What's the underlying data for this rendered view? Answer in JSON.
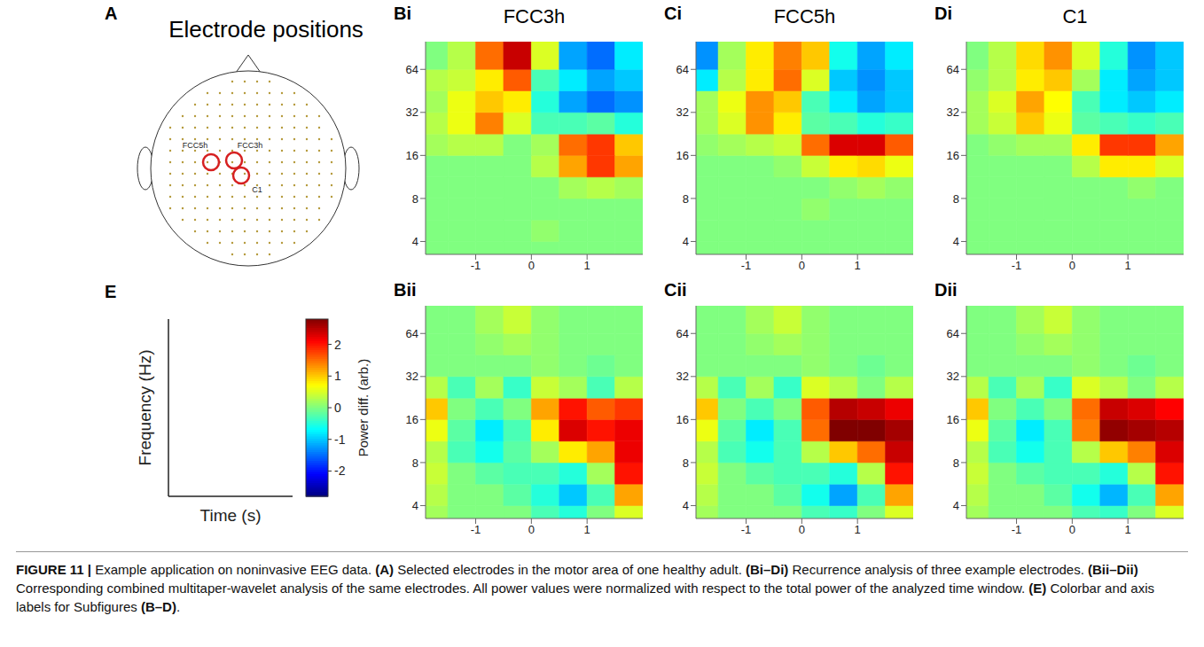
{
  "panel_a": {
    "letter": "A",
    "title": "Electrode positions",
    "selected_electrodes": [
      "FCC5h",
      "FCC3h",
      "C1"
    ]
  },
  "panel_e": {
    "letter": "E",
    "xlabel": "Time (s)",
    "ylabel": "Frequency (Hz)",
    "colorbar": {
      "range": [
        -2.8,
        2.8
      ],
      "ticks": [
        -2,
        -1,
        0,
        1,
        2
      ],
      "label": "Power diff. (arb.)"
    }
  },
  "chart_data": [
    {
      "type": "heatmap",
      "panel": "Bi",
      "title": "FCC3h",
      "log": "y",
      "xlim": [
        -1.9,
        2
      ],
      "ylim": [
        3.25,
        100
      ],
      "xticks": [
        -1,
        0,
        1
      ],
      "yticks": [
        4,
        8,
        16,
        32,
        64
      ],
      "x_edges": [
        -1.9,
        -1.5,
        -1,
        -0.5,
        0,
        0.5,
        1,
        1.5,
        2
      ],
      "y_edges": [
        3.25,
        4,
        5.66,
        8,
        11.3,
        16,
        22.6,
        32,
        45.3,
        64,
        100
      ],
      "cells": [
        [
          0,
          0,
          0,
          0,
          0,
          0,
          0,
          0
        ],
        [
          0,
          0,
          0,
          0,
          0.1,
          0,
          0,
          0
        ],
        [
          0,
          0,
          0,
          0,
          0,
          0,
          0,
          0
        ],
        [
          0,
          0,
          0,
          0,
          0,
          0.2,
          0.3,
          0.2
        ],
        [
          0,
          0,
          0,
          0,
          0.3,
          1.2,
          1.8,
          1.2
        ],
        [
          0.2,
          0.3,
          0.3,
          0,
          0.2,
          1.5,
          1.8,
          1
        ],
        [
          0.3,
          0.6,
          1.4,
          0.5,
          -0.3,
          -0.3,
          -0.2,
          -0.5
        ],
        [
          0.2,
          0.6,
          1,
          0.8,
          -0.5,
          -1.2,
          -1.5,
          -1.3
        ],
        [
          0.3,
          0.4,
          0.8,
          1.6,
          -0.3,
          -0.8,
          -1.2,
          -1
        ],
        [
          0,
          0.3,
          1.5,
          2.4,
          0.5,
          -1.2,
          -1.5,
          -0.8
        ]
      ]
    },
    {
      "type": "heatmap",
      "panel": "Ci",
      "title": "FCC5h",
      "log": "y",
      "xlim": [
        -1.9,
        2
      ],
      "ylim": [
        3.25,
        100
      ],
      "xticks": [
        -1,
        0,
        1
      ],
      "yticks": [
        4,
        8,
        16,
        32,
        64
      ],
      "x_edges": [
        -1.9,
        -1.5,
        -1,
        -0.5,
        0,
        0.5,
        1,
        1.5,
        2
      ],
      "y_edges": [
        3.25,
        4,
        5.66,
        8,
        11.3,
        16,
        22.6,
        32,
        45.3,
        64,
        100
      ],
      "cells": [
        [
          0,
          0,
          0,
          0,
          0,
          0,
          0,
          0
        ],
        [
          0,
          0,
          0,
          0,
          0,
          0,
          0,
          0
        ],
        [
          0,
          0,
          0,
          0,
          0.1,
          0,
          0,
          0
        ],
        [
          0,
          0,
          0,
          0,
          0,
          0.1,
          0.2,
          0.1
        ],
        [
          0,
          0,
          0,
          0.1,
          0.4,
          0.8,
          0.9,
          0.6
        ],
        [
          0.1,
          0.2,
          0.3,
          0.4,
          1.5,
          2.3,
          2.3,
          1.6
        ],
        [
          0.2,
          0.5,
          1.3,
          0.8,
          -0.2,
          -0.3,
          -0.5,
          -0.4
        ],
        [
          0.2,
          0.6,
          1.3,
          1,
          -0.3,
          -0.8,
          -1.2,
          -1
        ],
        [
          -0.8,
          0.3,
          0.8,
          1.5,
          0.5,
          -1,
          -1.3,
          -1
        ],
        [
          -1.3,
          0.2,
          0.8,
          1.4,
          1,
          -0.6,
          -1.2,
          -0.8
        ]
      ]
    },
    {
      "type": "heatmap",
      "panel": "Di",
      "title": "C1",
      "log": "y",
      "xlim": [
        -1.9,
        2
      ],
      "ylim": [
        3.25,
        100
      ],
      "xticks": [
        -1,
        0,
        1
      ],
      "yticks": [
        4,
        8,
        16,
        32,
        64
      ],
      "x_edges": [
        -1.9,
        -1.5,
        -1,
        -0.5,
        0,
        0.5,
        1,
        1.5,
        2
      ],
      "y_edges": [
        3.25,
        4,
        5.66,
        8,
        11.3,
        16,
        22.6,
        32,
        45.3,
        64,
        100
      ],
      "cells": [
        [
          0,
          0,
          0,
          0,
          0,
          0,
          0,
          0
        ],
        [
          0,
          0,
          0,
          0,
          0,
          0,
          0,
          0
        ],
        [
          0,
          0,
          0,
          0,
          0,
          0,
          0,
          0
        ],
        [
          0,
          0,
          0,
          0,
          0,
          0,
          0.1,
          0
        ],
        [
          0,
          0,
          0,
          0,
          0.3,
          0.8,
          0.8,
          0.5
        ],
        [
          0,
          0.1,
          0.2,
          0.2,
          0.8,
          1.8,
          1.8,
          1.2
        ],
        [
          0.2,
          0.4,
          1,
          0.6,
          -0.2,
          -0.3,
          -0.4,
          -0.3
        ],
        [
          0.2,
          0.5,
          1.2,
          0.7,
          -0.3,
          -0.8,
          -1,
          -0.8
        ],
        [
          0.1,
          0.3,
          0.8,
          1,
          0.2,
          -0.8,
          -1.2,
          -1
        ],
        [
          0,
          0.3,
          0.9,
          1.3,
          0.5,
          -0.5,
          -1.3,
          -1
        ]
      ]
    },
    {
      "type": "heatmap",
      "panel": "Bii",
      "log": "y",
      "xlim": [
        -1.9,
        2
      ],
      "ylim": [
        3.25,
        100
      ],
      "xticks": [
        -1,
        0,
        1
      ],
      "yticks": [
        4,
        8,
        16,
        32,
        64
      ],
      "x_edges": [
        -1.9,
        -1.5,
        -1,
        -0.5,
        0,
        0.5,
        1,
        1.5,
        2
      ],
      "y_edges": [
        3.25,
        4,
        5.66,
        8,
        11.3,
        16,
        22.6,
        32,
        45.3,
        64,
        100
      ],
      "cells": [
        [
          0.2,
          0,
          0,
          0,
          -0.3,
          -0.5,
          0,
          0.5
        ],
        [
          0.3,
          0,
          0,
          -0.2,
          -0.5,
          -1,
          -0.3,
          1.2
        ],
        [
          0.4,
          0,
          -0.2,
          -0.3,
          -0.3,
          -0.5,
          0.2,
          2
        ],
        [
          0.3,
          -0.3,
          -0.6,
          -0.2,
          0.2,
          0.8,
          1.2,
          2.2
        ],
        [
          0.6,
          -0.2,
          -0.8,
          -0.3,
          0.8,
          2.3,
          2,
          2.2
        ],
        [
          1,
          0,
          -0.3,
          0,
          1.2,
          2,
          1.6,
          1.8
        ],
        [
          0.3,
          -0.3,
          0.2,
          -0.4,
          0.4,
          0.2,
          -0.3,
          0.3
        ],
        [
          0,
          0,
          0,
          0,
          0.1,
          0,
          -0.1,
          0
        ],
        [
          0,
          0,
          0.1,
          0.2,
          0.1,
          0,
          0,
          0
        ],
        [
          0,
          0,
          0.2,
          0.4,
          0.1,
          0,
          0,
          0
        ]
      ]
    },
    {
      "type": "heatmap",
      "panel": "Cii",
      "log": "y",
      "xlim": [
        -1.9,
        2
      ],
      "ylim": [
        3.25,
        100
      ],
      "xticks": [
        -1,
        0,
        1
      ],
      "yticks": [
        4,
        8,
        16,
        32,
        64
      ],
      "x_edges": [
        -1.9,
        -1.5,
        -1,
        -0.5,
        0,
        0.5,
        1,
        1.5,
        2
      ],
      "y_edges": [
        3.25,
        4,
        5.66,
        8,
        11.3,
        16,
        22.6,
        32,
        45.3,
        64,
        100
      ],
      "cells": [
        [
          0.2,
          0,
          0,
          0,
          -0.3,
          -0.4,
          0,
          0.5
        ],
        [
          0.3,
          0,
          0,
          -0.2,
          -0.6,
          -1.2,
          -0.3,
          1.2
        ],
        [
          0.4,
          0,
          -0.2,
          -0.3,
          -0.3,
          -0.5,
          0.3,
          2
        ],
        [
          0.3,
          -0.3,
          -0.6,
          -0.3,
          0.3,
          1,
          1.5,
          2.4
        ],
        [
          0.6,
          -0.2,
          -0.8,
          -0.3,
          1.5,
          2.8,
          2.8,
          2.6
        ],
        [
          1,
          0,
          -0.3,
          0,
          1.6,
          2.5,
          2.4,
          2.2
        ],
        [
          0.3,
          -0.3,
          0.2,
          -0.4,
          0.5,
          0.3,
          0,
          0.3
        ],
        [
          0,
          0,
          0,
          0,
          0.1,
          0,
          -0.1,
          0
        ],
        [
          0,
          0,
          0.1,
          0.2,
          0.1,
          0,
          0,
          0
        ],
        [
          0,
          0,
          0.2,
          0.4,
          0.1,
          0,
          0,
          0
        ]
      ]
    },
    {
      "type": "heatmap",
      "panel": "Dii",
      "log": "y",
      "xlim": [
        -1.9,
        2
      ],
      "ylim": [
        3.25,
        100
      ],
      "xticks": [
        -1,
        0,
        1
      ],
      "yticks": [
        4,
        8,
        16,
        32,
        64
      ],
      "x_edges": [
        -1.9,
        -1.5,
        -1,
        -0.5,
        0,
        0.5,
        1,
        1.5,
        2
      ],
      "y_edges": [
        3.25,
        4,
        5.66,
        8,
        11.3,
        16,
        22.6,
        32,
        45.3,
        64,
        100
      ],
      "cells": [
        [
          0.2,
          0,
          0,
          0,
          -0.3,
          -0.4,
          0,
          0.5
        ],
        [
          0.3,
          0,
          0,
          -0.2,
          -0.6,
          -1.1,
          -0.3,
          1.2
        ],
        [
          0.4,
          0,
          -0.2,
          -0.3,
          -0.3,
          -0.5,
          0.3,
          2
        ],
        [
          0.3,
          -0.3,
          -0.6,
          -0.3,
          0.3,
          1,
          1.4,
          2.3
        ],
        [
          0.6,
          -0.2,
          -0.8,
          -0.3,
          1.4,
          2.7,
          2.6,
          2.5
        ],
        [
          1,
          0,
          -0.3,
          0,
          1.5,
          2.4,
          2.3,
          2.1
        ],
        [
          0.3,
          -0.3,
          0.2,
          -0.4,
          0.5,
          0.3,
          0,
          0.3
        ],
        [
          0,
          0,
          0,
          0,
          0.1,
          0,
          -0.1,
          0
        ],
        [
          0,
          0,
          0.1,
          0.2,
          0.1,
          0,
          0,
          0
        ],
        [
          0,
          0,
          0.2,
          0.4,
          0.1,
          0,
          0,
          0
        ]
      ]
    }
  ],
  "caption": [
    {
      "text": "FIGURE 11 | ",
      "bold": true
    },
    {
      "text": "Example application on noninvasive EEG data. ",
      "bold": false
    },
    {
      "text": "(A)",
      "bold": true
    },
    {
      "text": " Selected electrodes in the motor area of one healthy adult. ",
      "bold": false
    },
    {
      "text": "(Bi–Di)",
      "bold": true
    },
    {
      "text": " Recurrence analysis of three example electrodes. ",
      "bold": false
    },
    {
      "text": "(Bii–Dii)",
      "bold": true
    },
    {
      "text": " Corresponding combined multitaper-wavelet analysis of the same electrodes. All power values were normalized with respect to the total power of the analyzed time window. ",
      "bold": false
    },
    {
      "text": "(E)",
      "bold": true
    },
    {
      "text": " Colorbar and axis labels for Subfigures ",
      "bold": false
    },
    {
      "text": "(B–D)",
      "bold": true
    },
    {
      "text": ".",
      "bold": false
    }
  ]
}
